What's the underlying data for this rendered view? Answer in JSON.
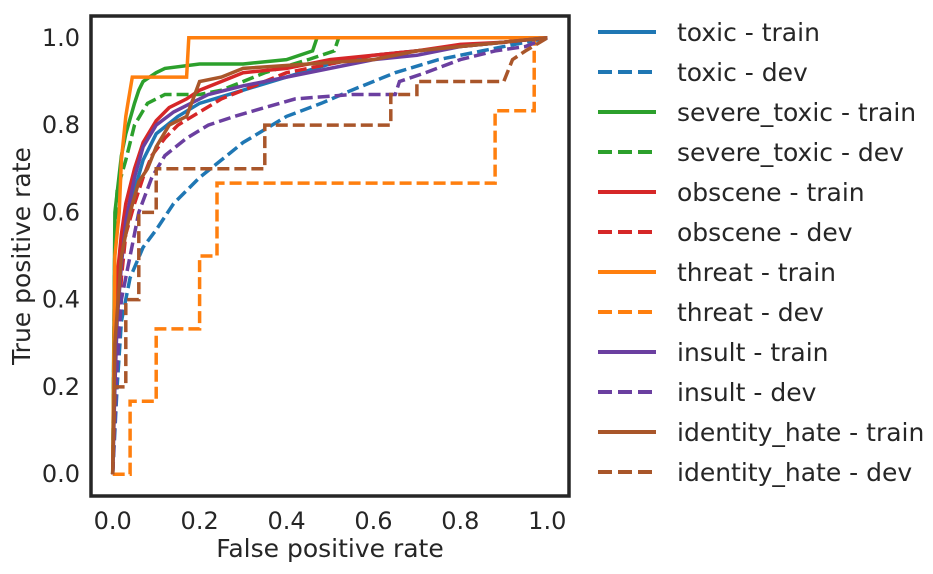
{
  "chart_data": {
    "type": "line",
    "title": "",
    "xlabel": "False positive rate",
    "ylabel": "True positive rate",
    "xlim": [
      -0.05,
      1.05
    ],
    "ylim": [
      -0.05,
      1.05
    ],
    "xticks": [
      "0.0",
      "0.2",
      "0.4",
      "0.6",
      "0.8",
      "1.0"
    ],
    "yticks": [
      "0.0",
      "0.2",
      "0.4",
      "0.6",
      "0.8",
      "1.0"
    ],
    "grid": false,
    "legend_position": "outside-right",
    "series": [
      {
        "name": "toxic - train",
        "color": "#1f77b4",
        "dash": "solid",
        "points": [
          [
            0,
            0
          ],
          [
            0.005,
            0.25
          ],
          [
            0.01,
            0.4
          ],
          [
            0.02,
            0.5
          ],
          [
            0.03,
            0.58
          ],
          [
            0.05,
            0.65
          ],
          [
            0.07,
            0.72
          ],
          [
            0.1,
            0.78
          ],
          [
            0.15,
            0.82
          ],
          [
            0.2,
            0.85
          ],
          [
            0.3,
            0.88
          ],
          [
            0.4,
            0.91
          ],
          [
            0.5,
            0.94
          ],
          [
            0.6,
            0.96
          ],
          [
            0.7,
            0.97
          ],
          [
            0.8,
            0.98
          ],
          [
            0.9,
            0.99
          ],
          [
            1,
            1
          ]
        ]
      },
      {
        "name": "toxic - dev",
        "color": "#1f77b4",
        "dash": "dashed",
        "points": [
          [
            0,
            0
          ],
          [
            0.01,
            0.2
          ],
          [
            0.02,
            0.35
          ],
          [
            0.04,
            0.45
          ],
          [
            0.07,
            0.52
          ],
          [
            0.1,
            0.56
          ],
          [
            0.14,
            0.62
          ],
          [
            0.2,
            0.68
          ],
          [
            0.25,
            0.72
          ],
          [
            0.3,
            0.76
          ],
          [
            0.35,
            0.79
          ],
          [
            0.4,
            0.82
          ],
          [
            0.48,
            0.85
          ],
          [
            0.55,
            0.88
          ],
          [
            0.65,
            0.92
          ],
          [
            0.75,
            0.95
          ],
          [
            0.85,
            0.97
          ],
          [
            0.95,
            0.99
          ],
          [
            1,
            1
          ]
        ]
      },
      {
        "name": "severe_toxic - train",
        "color": "#2ca02c",
        "dash": "solid",
        "points": [
          [
            0,
            0
          ],
          [
            0.005,
            0.6
          ],
          [
            0.02,
            0.73
          ],
          [
            0.03,
            0.78
          ],
          [
            0.05,
            0.85
          ],
          [
            0.06,
            0.88
          ],
          [
            0.07,
            0.9
          ],
          [
            0.1,
            0.92
          ],
          [
            0.12,
            0.93
          ],
          [
            0.2,
            0.94
          ],
          [
            0.3,
            0.94
          ],
          [
            0.4,
            0.95
          ],
          [
            0.46,
            0.97
          ],
          [
            0.47,
            1
          ],
          [
            1,
            1
          ]
        ]
      },
      {
        "name": "severe_toxic - dev",
        "color": "#2ca02c",
        "dash": "dashed",
        "points": [
          [
            0,
            0
          ],
          [
            0.005,
            0.55
          ],
          [
            0.01,
            0.65
          ],
          [
            0.03,
            0.72
          ],
          [
            0.05,
            0.8
          ],
          [
            0.08,
            0.85
          ],
          [
            0.12,
            0.87
          ],
          [
            0.2,
            0.87
          ],
          [
            0.25,
            0.88
          ],
          [
            0.3,
            0.9
          ],
          [
            0.35,
            0.92
          ],
          [
            0.45,
            0.95
          ],
          [
            0.51,
            0.97
          ],
          [
            0.52,
            1
          ],
          [
            1,
            1
          ]
        ]
      },
      {
        "name": "obscene - train",
        "color": "#d62728",
        "dash": "solid",
        "points": [
          [
            0,
            0
          ],
          [
            0.005,
            0.3
          ],
          [
            0.01,
            0.45
          ],
          [
            0.02,
            0.55
          ],
          [
            0.03,
            0.62
          ],
          [
            0.05,
            0.7
          ],
          [
            0.07,
            0.76
          ],
          [
            0.1,
            0.81
          ],
          [
            0.13,
            0.84
          ],
          [
            0.17,
            0.86
          ],
          [
            0.2,
            0.88
          ],
          [
            0.25,
            0.9
          ],
          [
            0.3,
            0.92
          ],
          [
            0.4,
            0.93
          ],
          [
            0.5,
            0.95
          ],
          [
            0.6,
            0.96
          ],
          [
            0.7,
            0.97
          ],
          [
            0.8,
            0.985
          ],
          [
            0.9,
            0.99
          ],
          [
            1,
            1
          ]
        ]
      },
      {
        "name": "obscene - dev",
        "color": "#d62728",
        "dash": "dashed",
        "points": [
          [
            0,
            0
          ],
          [
            0.01,
            0.3
          ],
          [
            0.02,
            0.45
          ],
          [
            0.03,
            0.55
          ],
          [
            0.05,
            0.62
          ],
          [
            0.07,
            0.68
          ],
          [
            0.09,
            0.73
          ],
          [
            0.12,
            0.77
          ],
          [
            0.15,
            0.8
          ],
          [
            0.2,
            0.83
          ],
          [
            0.25,
            0.86
          ],
          [
            0.3,
            0.88
          ],
          [
            0.4,
            0.92
          ],
          [
            0.5,
            0.94
          ],
          [
            0.6,
            0.96
          ],
          [
            0.7,
            0.97
          ],
          [
            0.8,
            0.98
          ],
          [
            0.9,
            0.99
          ],
          [
            1,
            1
          ]
        ]
      },
      {
        "name": "threat - train",
        "color": "#ff7f0e",
        "dash": "solid",
        "points": [
          [
            0,
            0
          ],
          [
            0.005,
            0.5
          ],
          [
            0.015,
            0.6
          ],
          [
            0.02,
            0.72
          ],
          [
            0.03,
            0.82
          ],
          [
            0.035,
            0.85
          ],
          [
            0.04,
            0.88
          ],
          [
            0.045,
            0.91
          ],
          [
            0.1,
            0.91
          ],
          [
            0.17,
            0.91
          ],
          [
            0.175,
            1
          ],
          [
            1,
            1
          ]
        ]
      },
      {
        "name": "threat - dev",
        "color": "#ff7f0e",
        "dash": "dashed",
        "points": [
          [
            0,
            0
          ],
          [
            0.04,
            0
          ],
          [
            0.04,
            0.167
          ],
          [
            0.1,
            0.167
          ],
          [
            0.1,
            0.333
          ],
          [
            0.2,
            0.333
          ],
          [
            0.2,
            0.5
          ],
          [
            0.24,
            0.5
          ],
          [
            0.24,
            0.667
          ],
          [
            0.88,
            0.667
          ],
          [
            0.88,
            0.833
          ],
          [
            0.97,
            0.833
          ],
          [
            0.97,
            1
          ],
          [
            1,
            1
          ]
        ]
      },
      {
        "name": "insult - train",
        "color": "#6b3fa0",
        "dash": "solid",
        "points": [
          [
            0,
            0
          ],
          [
            0.005,
            0.2
          ],
          [
            0.01,
            0.35
          ],
          [
            0.02,
            0.48
          ],
          [
            0.03,
            0.58
          ],
          [
            0.05,
            0.68
          ],
          [
            0.07,
            0.75
          ],
          [
            0.1,
            0.8
          ],
          [
            0.14,
            0.83
          ],
          [
            0.18,
            0.85
          ],
          [
            0.22,
            0.87
          ],
          [
            0.3,
            0.89
          ],
          [
            0.4,
            0.91
          ],
          [
            0.5,
            0.93
          ],
          [
            0.6,
            0.95
          ],
          [
            0.7,
            0.96
          ],
          [
            0.8,
            0.98
          ],
          [
            0.9,
            0.99
          ],
          [
            1,
            1
          ]
        ]
      },
      {
        "name": "insult - dev",
        "color": "#6b3fa0",
        "dash": "dashed",
        "points": [
          [
            0,
            0
          ],
          [
            0.01,
            0.25
          ],
          [
            0.02,
            0.4
          ],
          [
            0.04,
            0.5
          ],
          [
            0.06,
            0.6
          ],
          [
            0.09,
            0.68
          ],
          [
            0.12,
            0.73
          ],
          [
            0.17,
            0.77
          ],
          [
            0.22,
            0.8
          ],
          [
            0.28,
            0.82
          ],
          [
            0.35,
            0.84
          ],
          [
            0.42,
            0.86
          ],
          [
            0.55,
            0.87
          ],
          [
            0.65,
            0.87
          ],
          [
            0.66,
            0.9
          ],
          [
            0.72,
            0.92
          ],
          [
            0.8,
            0.95
          ],
          [
            0.88,
            0.97
          ],
          [
            0.95,
            0.98
          ],
          [
            1,
            1
          ]
        ]
      },
      {
        "name": "identity_hate - train",
        "color": "#a9562a",
        "dash": "solid",
        "points": [
          [
            0,
            0
          ],
          [
            0.005,
            0.3
          ],
          [
            0.02,
            0.5
          ],
          [
            0.04,
            0.6
          ],
          [
            0.06,
            0.67
          ],
          [
            0.08,
            0.7
          ],
          [
            0.1,
            0.75
          ],
          [
            0.13,
            0.8
          ],
          [
            0.17,
            0.82
          ],
          [
            0.2,
            0.9
          ],
          [
            0.25,
            0.91
          ],
          [
            0.3,
            0.93
          ],
          [
            0.45,
            0.94
          ],
          [
            0.6,
            0.95
          ],
          [
            0.7,
            0.97
          ],
          [
            0.8,
            0.98
          ],
          [
            0.9,
            0.99
          ],
          [
            1,
            1
          ]
        ]
      },
      {
        "name": "identity_hate - dev",
        "color": "#a9562a",
        "dash": "dashed",
        "points": [
          [
            0,
            0
          ],
          [
            0.005,
            0.2
          ],
          [
            0.03,
            0.2
          ],
          [
            0.03,
            0.4
          ],
          [
            0.06,
            0.4
          ],
          [
            0.06,
            0.6
          ],
          [
            0.1,
            0.6
          ],
          [
            0.1,
            0.7
          ],
          [
            0.25,
            0.7
          ],
          [
            0.35,
            0.7
          ],
          [
            0.35,
            0.8
          ],
          [
            0.4,
            0.8
          ],
          [
            0.55,
            0.8
          ],
          [
            0.64,
            0.8
          ],
          [
            0.64,
            0.87
          ],
          [
            0.7,
            0.87
          ],
          [
            0.7,
            0.9
          ],
          [
            0.9,
            0.9
          ],
          [
            0.92,
            0.95
          ],
          [
            0.95,
            0.97
          ],
          [
            1,
            1
          ]
        ]
      }
    ]
  }
}
